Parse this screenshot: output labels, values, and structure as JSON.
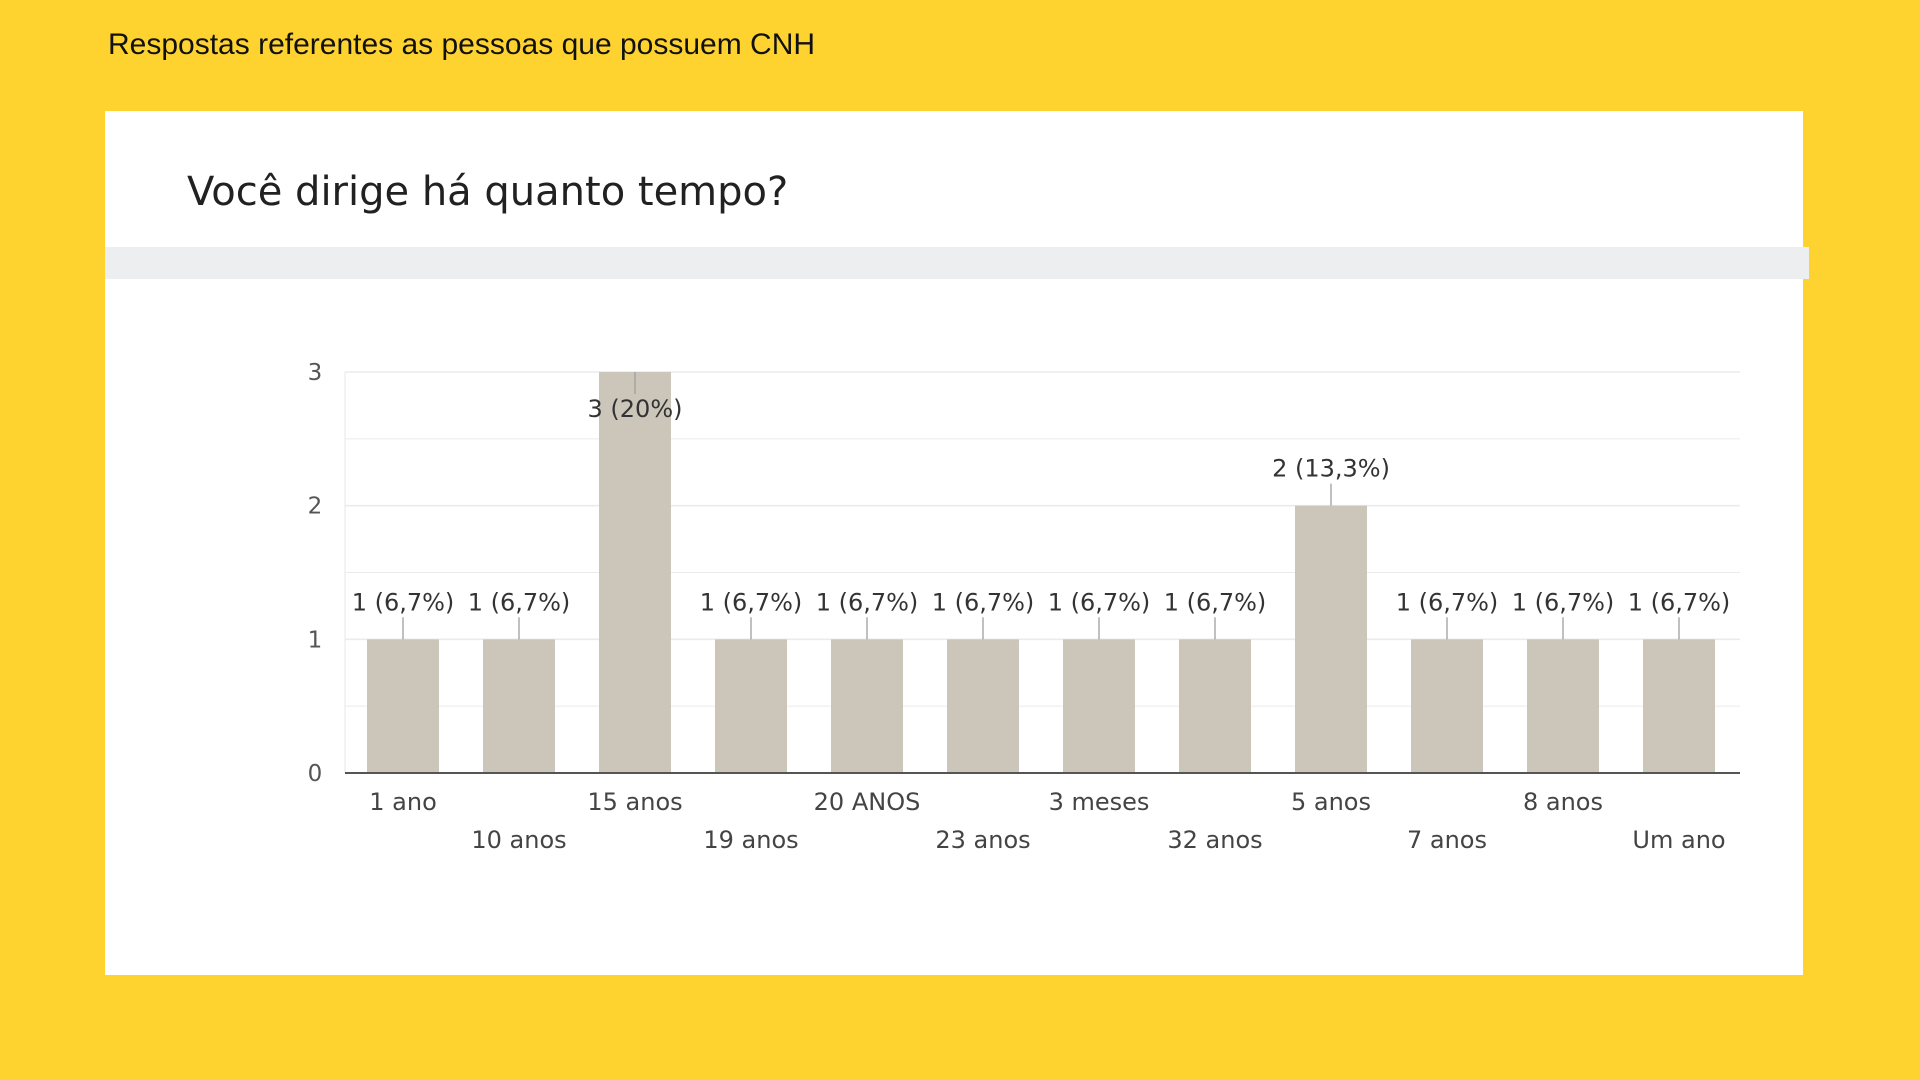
{
  "caption": "Respostas referentes as pessoas que possuem CNH",
  "question": "Você dirige há quanto tempo?",
  "colors": {
    "background": "#FED330",
    "bar": "#CCC5B9",
    "grid": "#EBEBEB",
    "axis": "#555555"
  },
  "chart_data": {
    "type": "bar",
    "title": "",
    "xlabel": "",
    "ylabel": "",
    "ylim": [
      0,
      3
    ],
    "yticks": [
      0,
      1,
      2,
      3
    ],
    "grid": true,
    "categories": [
      "1 ano",
      "10 anos",
      "15 anos",
      "19 anos",
      "20 ANOS",
      "23 anos",
      "3 meses",
      "32 anos",
      "5 anos",
      "7 anos",
      "8 anos",
      "Um ano"
    ],
    "values": [
      1,
      1,
      3,
      1,
      1,
      1,
      1,
      1,
      2,
      1,
      1,
      1
    ],
    "data_labels": [
      "1 (6,7%)",
      "1 (6,7%)",
      "3 (20%)",
      "1 (6,7%)",
      "1 (6,7%)",
      "1 (6,7%)",
      "1 (6,7%)",
      "1 (6,7%)",
      "2 (13,3%)",
      "1 (6,7%)",
      "1 (6,7%)",
      "1 (6,7%)"
    ]
  }
}
